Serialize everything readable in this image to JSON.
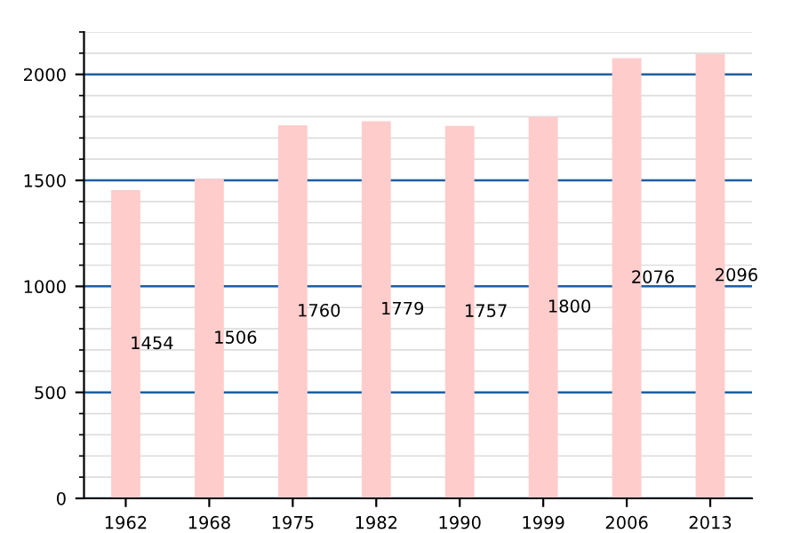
{
  "chart_data": {
    "type": "bar",
    "categories": [
      "1962",
      "1968",
      "1975",
      "1982",
      "1990",
      "1999",
      "2006",
      "2013"
    ],
    "values": [
      1454,
      1506,
      1760,
      1779,
      1757,
      1800,
      2076,
      2096
    ],
    "color": "#ffcccc",
    "ylim": [
      0,
      2200
    ],
    "yticks": [
      0,
      500,
      1000,
      1500,
      2000
    ],
    "grid": "y",
    "data_labels": true
  }
}
